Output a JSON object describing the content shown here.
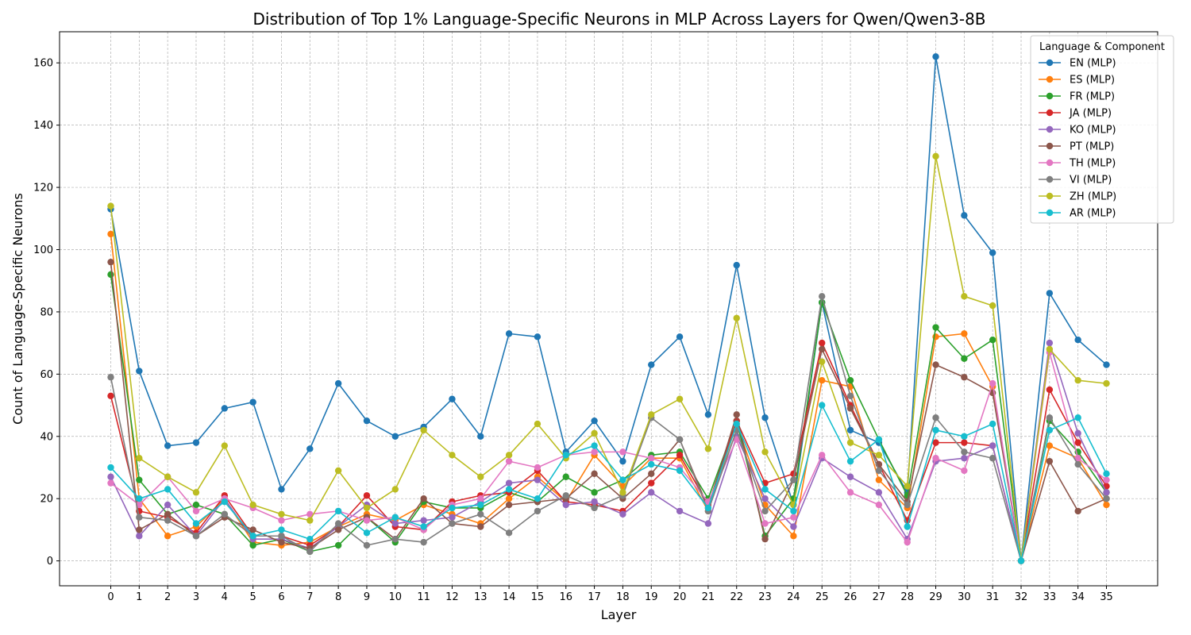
{
  "chart_data": {
    "type": "line",
    "title": "Distribution of Top 1% Language-Specific Neurons in MLP Across Layers for Qwen/Qwen3-8B",
    "xlabel": "Layer",
    "ylabel": "Count of Language-Specific Neurons",
    "ylim": [
      -8,
      170
    ],
    "yticks": [
      0,
      20,
      40,
      60,
      80,
      100,
      120,
      140,
      160
    ],
    "grid": true,
    "legend_title": "Language & Component",
    "legend_position": "top-right",
    "x": [
      0,
      1,
      2,
      3,
      4,
      5,
      6,
      7,
      8,
      9,
      10,
      11,
      12,
      13,
      14,
      15,
      16,
      17,
      18,
      19,
      20,
      21,
      22,
      23,
      24,
      25,
      26,
      27,
      28,
      29,
      30,
      31,
      32,
      33,
      34,
      35
    ],
    "series": [
      {
        "name": "EN (MLP)",
        "color": "#1f77b4",
        "values": [
          113,
          61,
          37,
          38,
          49,
          51,
          23,
          36,
          57,
          45,
          40,
          43,
          52,
          40,
          73,
          72,
          35,
          45,
          32,
          63,
          72,
          47,
          95,
          46,
          18,
          83,
          42,
          38,
          22,
          162,
          111,
          99,
          0,
          86,
          71,
          63
        ]
      },
      {
        "name": "ES (MLP)",
        "color": "#ff7f0e",
        "values": [
          105,
          20,
          8,
          11,
          20,
          6,
          5,
          6,
          11,
          15,
          13,
          18,
          15,
          12,
          20,
          27,
          19,
          34,
          24,
          33,
          33,
          16,
          44,
          18,
          8,
          58,
          56,
          26,
          17,
          72,
          73,
          56,
          0,
          37,
          33,
          18
        ]
      },
      {
        "name": "FR (MLP)",
        "color": "#2ca02c",
        "values": [
          92,
          26,
          15,
          18,
          15,
          5,
          7,
          3,
          5,
          14,
          6,
          19,
          17,
          17,
          22,
          19,
          27,
          22,
          26,
          34,
          35,
          20,
          45,
          8,
          20,
          83,
          58,
          39,
          21,
          75,
          65,
          71,
          0,
          45,
          35,
          22
        ]
      },
      {
        "name": "JA (MLP)",
        "color": "#d62728",
        "values": [
          53,
          16,
          14,
          9,
          21,
          8,
          8,
          5,
          11,
          21,
          11,
          10,
          19,
          21,
          22,
          29,
          19,
          18,
          16,
          25,
          34,
          18,
          45,
          25,
          28,
          70,
          50,
          31,
          13,
          38,
          38,
          37,
          0,
          55,
          38,
          24
        ]
      },
      {
        "name": "KO (MLP)",
        "color": "#9467bd",
        "values": [
          27,
          8,
          18,
          8,
          20,
          7,
          7,
          4,
          11,
          18,
          12,
          13,
          14,
          19,
          25,
          26,
          18,
          19,
          15,
          22,
          16,
          12,
          40,
          20,
          11,
          33,
          27,
          22,
          7,
          32,
          33,
          37,
          0,
          70,
          41,
          22
        ]
      },
      {
        "name": "PT (MLP)",
        "color": "#8c564b",
        "values": [
          96,
          10,
          15,
          8,
          14,
          10,
          6,
          4,
          10,
          14,
          7,
          20,
          12,
          11,
          18,
          19,
          20,
          28,
          20,
          28,
          39,
          17,
          47,
          7,
          26,
          68,
          49,
          31,
          19,
          63,
          59,
          54,
          0,
          32,
          16,
          20
        ]
      },
      {
        "name": "TH (MLP)",
        "color": "#e377c2",
        "values": [
          25,
          18,
          27,
          16,
          20,
          17,
          13,
          15,
          16,
          13,
          14,
          10,
          18,
          20,
          32,
          30,
          34,
          35,
          35,
          33,
          30,
          19,
          39,
          12,
          14,
          34,
          22,
          18,
          6,
          33,
          29,
          57,
          0,
          67,
          33,
          26
        ]
      },
      {
        "name": "VI (MLP)",
        "color": "#7f7f7f",
        "values": [
          59,
          14,
          13,
          8,
          15,
          8,
          8,
          3,
          12,
          5,
          7,
          6,
          12,
          15,
          9,
          16,
          21,
          17,
          21,
          46,
          39,
          16,
          42,
          16,
          26,
          85,
          53,
          29,
          18,
          46,
          35,
          33,
          0,
          46,
          31,
          20
        ]
      },
      {
        "name": "ZH (MLP)",
        "color": "#bcbd22",
        "values": [
          114,
          33,
          27,
          22,
          37,
          18,
          15,
          13,
          29,
          17,
          23,
          42,
          34,
          27,
          34,
          44,
          33,
          41,
          22,
          47,
          52,
          36,
          78,
          35,
          18,
          64,
          38,
          34,
          24,
          130,
          85,
          82,
          0,
          68,
          58,
          57
        ]
      },
      {
        "name": "AR (MLP)",
        "color": "#17becf",
        "values": [
          30,
          20,
          23,
          12,
          19,
          8,
          10,
          7,
          16,
          9,
          14,
          11,
          17,
          18,
          23,
          20,
          34,
          37,
          26,
          31,
          29,
          17,
          44,
          23,
          16,
          50,
          32,
          39,
          11,
          42,
          40,
          44,
          0,
          42,
          46,
          28
        ]
      }
    ]
  }
}
